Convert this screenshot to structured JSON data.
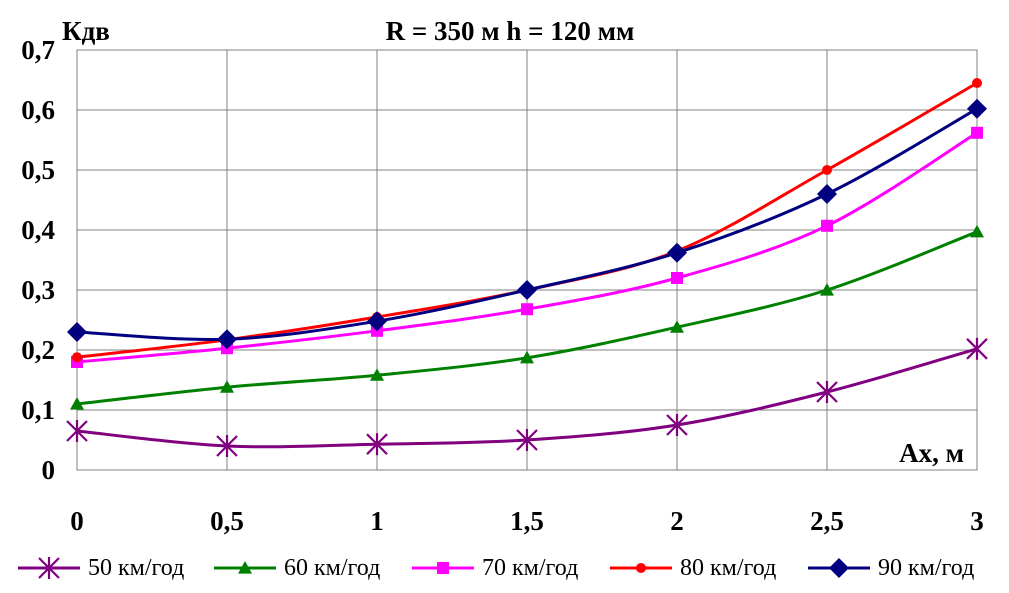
{
  "chart_data": {
    "type": "line",
    "title": "R = 350 м  h = 120 мм",
    "ylabel": "Кдв",
    "xlabel": "Ах, м",
    "x": [
      0,
      0.5,
      1,
      1.5,
      2,
      2.5,
      3
    ],
    "x_tick_labels": [
      "0",
      "0,5",
      "1",
      "1,5",
      "2",
      "2,5",
      "3"
    ],
    "ylim": [
      0,
      0.7
    ],
    "y_ticks": [
      0,
      0.1,
      0.2,
      0.3,
      0.4,
      0.5,
      0.6,
      0.7
    ],
    "y_tick_labels": [
      "0",
      "0,1",
      "0,2",
      "0,3",
      "0,4",
      "0,5",
      "0,6",
      "0,7"
    ],
    "grid": true,
    "legend_position": "bottom",
    "series": [
      {
        "name": "50 км/год",
        "color": "#800080",
        "marker": "star",
        "values": [
          0.065,
          0.04,
          0.043,
          0.05,
          0.075,
          0.13,
          0.202
        ]
      },
      {
        "name": "60 км/год",
        "color": "#008000",
        "marker": "triangle",
        "values": [
          0.11,
          0.138,
          0.158,
          0.187,
          0.238,
          0.3,
          0.397
        ]
      },
      {
        "name": "70 км/год",
        "color": "#FF00FF",
        "marker": "square",
        "values": [
          0.18,
          0.203,
          0.232,
          0.268,
          0.32,
          0.407,
          0.562
        ]
      },
      {
        "name": "80 км/год",
        "color": "#FF0000",
        "marker": "circle",
        "values": [
          0.188,
          0.217,
          0.255,
          0.3,
          0.365,
          0.5,
          0.645
        ]
      },
      {
        "name": "90 км/год",
        "color": "#000080",
        "marker": "diamond",
        "values": [
          0.23,
          0.218,
          0.248,
          0.3,
          0.362,
          0.46,
          0.602
        ]
      }
    ]
  }
}
